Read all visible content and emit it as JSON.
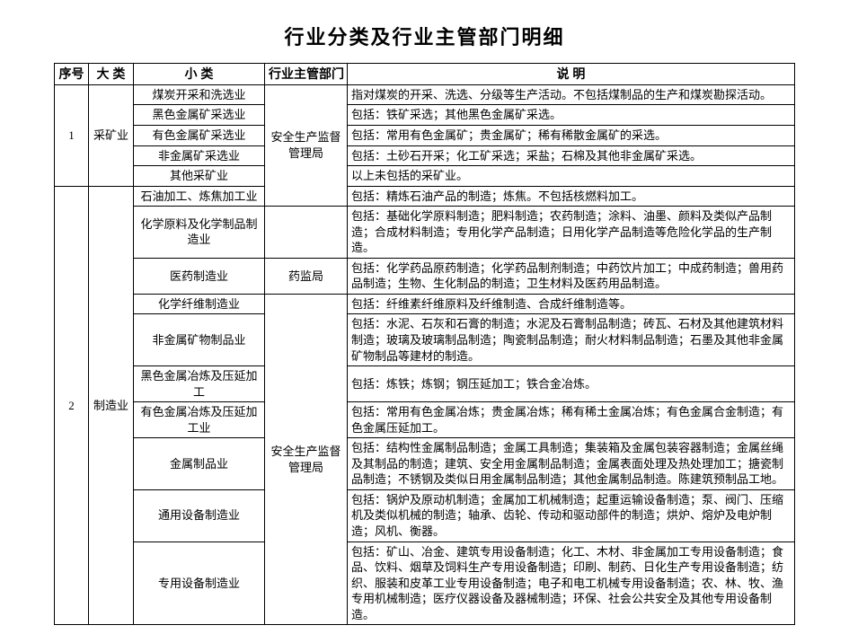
{
  "title": "行业分类及行业主管部门明细",
  "headers": {
    "seq": "序号",
    "cat": "大  类",
    "sub": "小    类",
    "dept": "行业主管部门",
    "desc": "说        明"
  },
  "seq": {
    "r1": "1",
    "r2": "2"
  },
  "cat": {
    "r1": "采矿业",
    "r2": "制造业"
  },
  "dept": {
    "safety1": "安全生产监督管理局",
    "drug": "药监局",
    "safety2": "安全生产监督管理局"
  },
  "sub": {
    "coal": "煤炭开采和洗选业",
    "ferrous_mine": "黑色金属矿采选业",
    "nonferrous_mine": "有色金属矿采选业",
    "nonmetal_mine": "非金属矿采选业",
    "other_mine": "其他采矿业",
    "petro": "石油加工、炼焦加工业",
    "chem_raw": "化学原料及化学制品制造业",
    "pharma": "医药制造业",
    "chem_fiber": "化学纤维制造业",
    "nonmetal_prod": "非金属矿物制品业",
    "ferrous_smelt": "黑色金属冶炼及压延加工",
    "nonferrous_smelt": "有色金属冶炼及压延加工业",
    "metal_prod": "金属制品业",
    "general_equip": "通用设备制造业",
    "special_equip": "专用设备制造业"
  },
  "desc": {
    "coal": "指对煤炭的开采、洗选、分级等生产活动。不包括煤制品的生产和煤炭勘探活动。",
    "ferrous_mine": "包括：铁矿采选；其他黑色金属矿采选。",
    "nonferrous_mine": "包括：常用有色金属矿；贵金属矿；稀有稀散金属矿的采选。",
    "nonmetal_mine": "包括：土砂石开采；化工矿采选；采盐；石棉及其他非金属矿采选。",
    "other_mine": "以上未包括的采矿业。",
    "petro": "包括：精炼石油产品的制造；炼焦。不包括核燃料加工。",
    "chem_raw": "包括：基础化学原料制造；肥料制造；农药制造；涂料、油墨、颜料及类似产品制造；合成材料制造；专用化学产品制造；日用化学产品制造等危险化学品的生产制造。",
    "pharma": "包括：化学药品原药制造；化学药品制剂制造；中药饮片加工；中成药制造；兽用药品制造；生物、生化制品的制造；卫生材料及医药用品制造。",
    "chem_fiber": "包括：纤维素纤维原料及纤维制造、合成纤维制造等。",
    "nonmetal_prod": "包括：水泥、石灰和石膏的制造；水泥及石膏制品制造；砖瓦、石材及其他建筑材料制造；玻璃及玻璃制品制造；陶瓷制品制造；耐火材料制品制造；石墨及其他非金属矿物制品等建材的制造。",
    "ferrous_smelt": "包括：炼铁；炼钢；钢压延加工；铁合金冶炼。",
    "nonferrous_smelt": "包括：常用有色金属冶炼；贵金属冶炼；稀有稀土金属冶炼；有色金属合金制造；有色金属压延加工。",
    "metal_prod": "包括：结构性金属制品制造；金属工具制造；集装箱及金属包装容器制造；金属丝绳及其制品的制造；建筑、安全用金属制品制造；金属表面处理及热处理加工；搪瓷制品制造；不锈钢及类似日用金属制品制造；其他金属制品制造。陈建筑预制品工地。",
    "general_equip": "包括：锅炉及原动机制造；金属加工机械制造；起重运输设备制造；泵、阀门、压缩机及类似机械的制造；轴承、齿轮、传动和驱动部件的制造；烘炉、熔炉及电炉制造；风机、衡器。",
    "special_equip": "包括：矿山、冶金、建筑专用设备制造；化工、木材、非金属加工专用设备制造；食品、饮料、烟草及饲料生产专用设备制造；印刷、制药、日化生产专用设备制造；纺织、服装和皮革工业专用设备制造；电子和电工机械专用设备制造；农、林、牧、渔专用机械制造；医疗仪器设备及器械制造；环保、社会公共安全及其他专用设备制造。"
  }
}
